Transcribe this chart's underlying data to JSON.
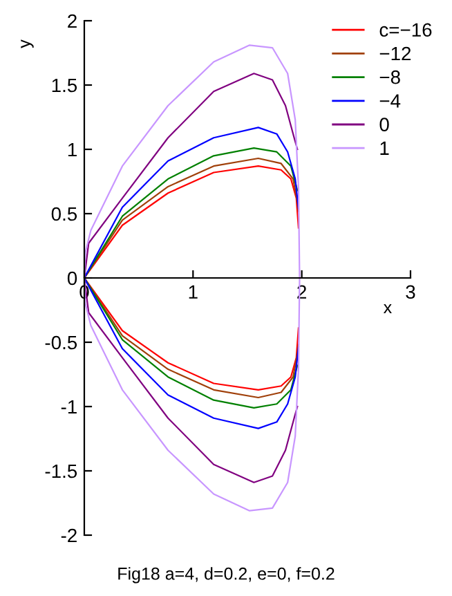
{
  "chart_data": {
    "type": "line",
    "title": "Fig18 a=4, d=0.2, e=0, f=0.2",
    "xlabel": "x",
    "ylabel": "y",
    "xlim": [
      0,
      3
    ],
    "ylim": [
      -2,
      2
    ],
    "xticks": [
      0,
      1,
      2,
      3
    ],
    "yticks": [
      -2,
      -1.5,
      -1,
      -0.5,
      0,
      0.5,
      1,
      1.5,
      2
    ],
    "grid": false,
    "legend": "top right",
    "marker": "none",
    "line_style": "solid",
    "series": [
      {
        "name": "c=−16",
        "color": "#ff0000",
        "x": [
          0,
          0.35,
          0.77,
          1.19,
          1.6,
          1.81,
          1.9,
          1.95,
          1.97,
          null,
          1.97,
          1.95,
          1.9,
          1.81,
          1.6,
          1.19,
          0.77,
          0.35,
          0
        ],
        "values": [
          0,
          0.41,
          0.66,
          0.82,
          0.87,
          0.84,
          0.77,
          0.62,
          0.39,
          null,
          -0.39,
          -0.62,
          -0.77,
          -0.84,
          -0.87,
          -0.82,
          -0.66,
          -0.41,
          0
        ]
      },
      {
        "name": "−12",
        "color": "#a0400a",
        "x": [
          0,
          0.35,
          0.77,
          1.19,
          1.6,
          1.81,
          1.92,
          1.96,
          1.97,
          null,
          1.97,
          1.96,
          1.92,
          1.81,
          1.6,
          1.19,
          0.77,
          0.35,
          0
        ],
        "values": [
          0,
          0.45,
          0.71,
          0.87,
          0.93,
          0.89,
          0.77,
          0.59,
          0.52,
          null,
          -0.52,
          -0.59,
          -0.77,
          -0.89,
          -0.93,
          -0.87,
          -0.71,
          -0.45,
          0
        ]
      },
      {
        "name": "−8",
        "color": "#008000",
        "x": [
          0,
          0.35,
          0.77,
          1.19,
          1.56,
          1.77,
          1.9,
          1.96,
          null,
          1.96,
          1.9,
          1.77,
          1.56,
          1.19,
          0.77,
          0.35,
          0
        ],
        "values": [
          0,
          0.48,
          0.77,
          0.95,
          1.01,
          0.98,
          0.87,
          0.68,
          null,
          -0.68,
          -0.87,
          -0.98,
          -1.01,
          -0.95,
          -0.77,
          -0.48,
          0
        ]
      },
      {
        "name": "−4",
        "color": "#0000ff",
        "x": [
          0,
          0.35,
          0.77,
          1.19,
          1.6,
          1.77,
          1.87,
          1.94,
          1.97,
          null,
          1.97,
          1.94,
          1.87,
          1.77,
          1.6,
          1.19,
          0.77,
          0.35,
          0
        ],
        "values": [
          0,
          0.55,
          0.91,
          1.09,
          1.17,
          1.12,
          0.98,
          0.77,
          0.54,
          null,
          -0.54,
          -0.77,
          -0.98,
          -1.12,
          -1.17,
          -1.09,
          -0.91,
          -0.55,
          0
        ]
      },
      {
        "name": "0",
        "color": "#800080",
        "x": [
          0,
          0.04,
          0.35,
          0.77,
          1.19,
          1.56,
          1.73,
          1.85,
          1.93,
          1.96,
          null,
          1.96,
          1.93,
          1.85,
          1.73,
          1.56,
          1.19,
          0.77,
          0.35,
          0.04,
          0
        ],
        "values": [
          0,
          0.27,
          0.62,
          1.09,
          1.45,
          1.59,
          1.54,
          1.34,
          1.09,
          1.0,
          null,
          -1.0,
          -1.09,
          -1.34,
          -1.54,
          -1.59,
          -1.45,
          -1.09,
          -0.62,
          -0.27,
          0
        ]
      },
      {
        "name": "1",
        "color": "#c896ff",
        "x": [
          0,
          0.01,
          0.06,
          0.35,
          0.77,
          1.19,
          1.52,
          1.73,
          1.87,
          1.94,
          1.97,
          1.98,
          null,
          1.98,
          1.97,
          1.94,
          1.87,
          1.73,
          1.52,
          1.19,
          0.77,
          0.35,
          0.06,
          0.01,
          0
        ],
        "values": [
          0,
          0.2,
          0.37,
          0.87,
          1.34,
          1.68,
          1.81,
          1.79,
          1.59,
          1.23,
          0.7,
          0,
          null,
          0,
          -0.7,
          -1.23,
          -1.59,
          -1.79,
          -1.81,
          -1.68,
          -1.34,
          -0.87,
          -0.37,
          -0.2,
          0
        ]
      }
    ]
  }
}
